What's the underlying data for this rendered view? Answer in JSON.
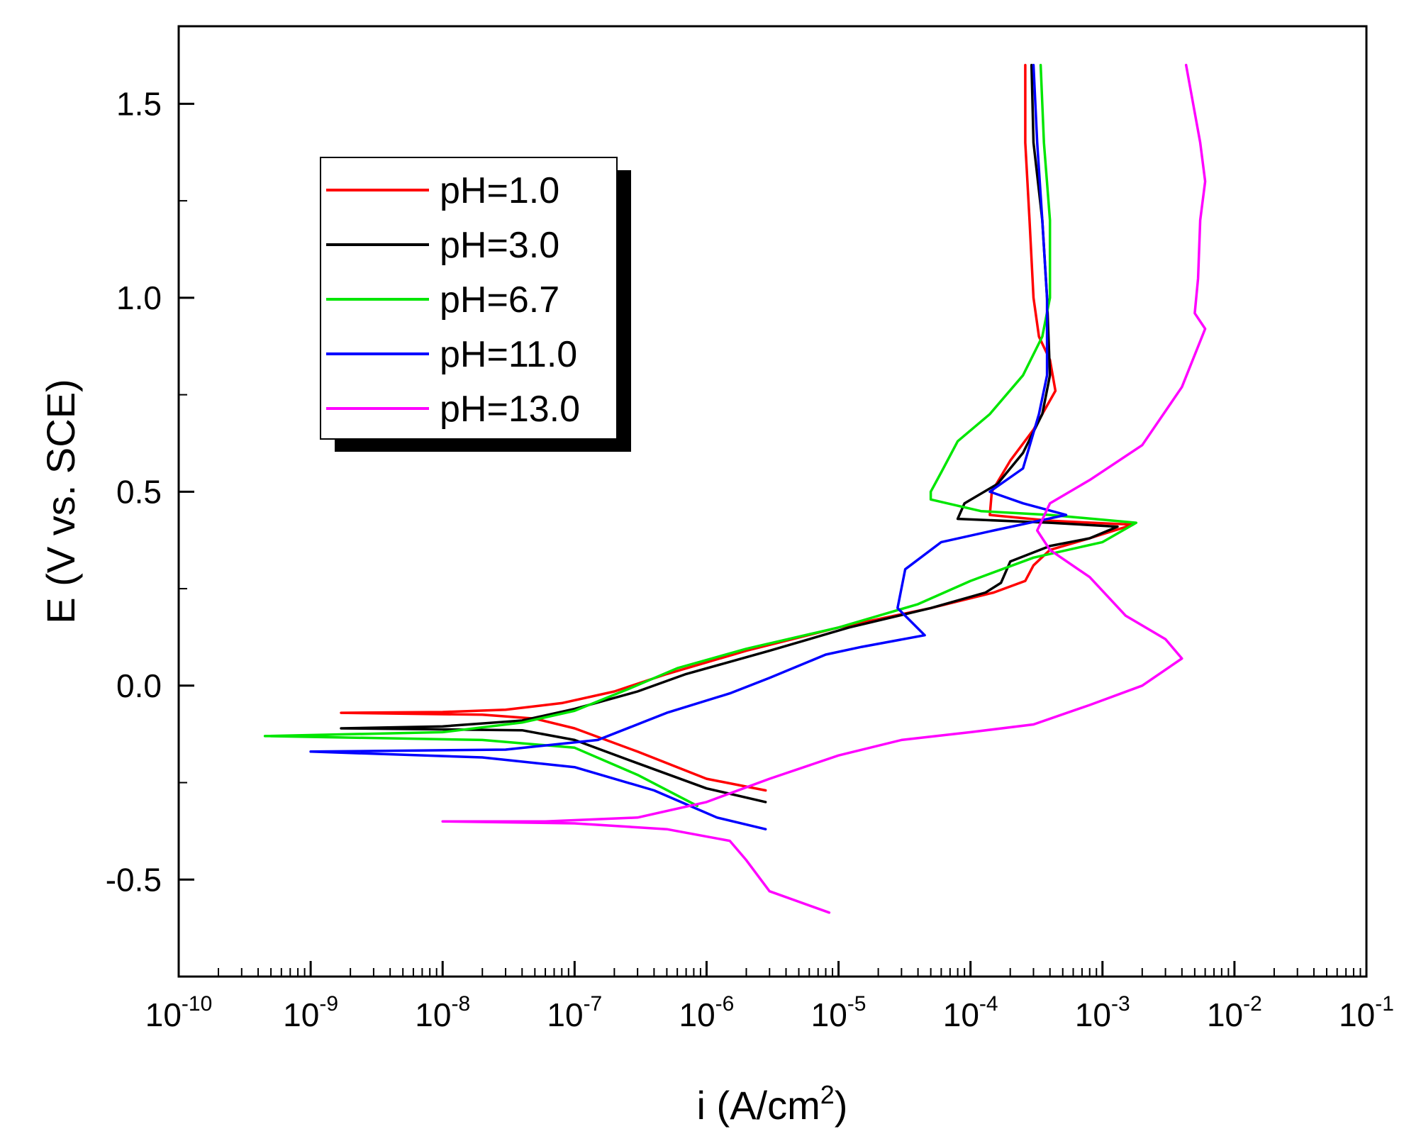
{
  "chart_data": {
    "type": "line",
    "title": "",
    "xlabel": {
      "base": "i (A/cm",
      "sup": "2",
      "tail": ")"
    },
    "ylabel": "E (V vs. SCE)",
    "xscale": "log",
    "xlim": [
      1e-10,
      0.1
    ],
    "ylim": [
      -0.75,
      1.7
    ],
    "grid": false,
    "legend_position": "top-left",
    "x_ticks": [
      {
        "value": 1e-10,
        "base": "10",
        "exp": "-10"
      },
      {
        "value": 1e-09,
        "base": "10",
        "exp": "-9"
      },
      {
        "value": 1e-08,
        "base": "10",
        "exp": "-8"
      },
      {
        "value": 1e-07,
        "base": "10",
        "exp": "-7"
      },
      {
        "value": 1e-06,
        "base": "10",
        "exp": "-6"
      },
      {
        "value": 1e-05,
        "base": "10",
        "exp": "-5"
      },
      {
        "value": 0.0001,
        "base": "10",
        "exp": "-4"
      },
      {
        "value": 0.001,
        "base": "10",
        "exp": "-3"
      },
      {
        "value": 0.01,
        "base": "10",
        "exp": "-2"
      },
      {
        "value": 0.1,
        "base": "10",
        "exp": "-1"
      }
    ],
    "y_ticks": [
      {
        "value": -0.5,
        "label": "-0.5"
      },
      {
        "value": 0.0,
        "label": "0.0"
      },
      {
        "value": 0.5,
        "label": "0.5"
      },
      {
        "value": 1.0,
        "label": "1.0"
      },
      {
        "value": 1.5,
        "label": "1.5"
      }
    ],
    "series": [
      {
        "name": "pH=1.0",
        "color": "#ff0000",
        "points": [
          [
            2.8e-06,
            -0.27
          ],
          [
            1e-06,
            -0.24
          ],
          [
            3e-07,
            -0.17
          ],
          [
            1e-07,
            -0.11
          ],
          [
            5e-08,
            -0.085
          ],
          [
            2e-08,
            -0.075
          ],
          [
            1.7e-09,
            -0.07
          ],
          [
            1e-08,
            -0.068
          ],
          [
            3e-08,
            -0.062
          ],
          [
            8e-08,
            -0.045
          ],
          [
            2e-07,
            -0.015
          ],
          [
            5e-07,
            0.03
          ],
          [
            2e-06,
            0.09
          ],
          [
            1e-05,
            0.15
          ],
          [
            5e-05,
            0.2
          ],
          [
            0.00015,
            0.24
          ],
          [
            0.00026,
            0.27
          ],
          [
            0.0003,
            0.31
          ],
          [
            0.0004,
            0.35
          ],
          [
            0.0008,
            0.38
          ],
          [
            0.0017,
            0.415
          ],
          [
            0.0004,
            0.425
          ],
          [
            0.00014,
            0.44
          ],
          [
            0.000145,
            0.5
          ],
          [
            0.0002,
            0.58
          ],
          [
            0.0003,
            0.66
          ],
          [
            0.00044,
            0.76
          ],
          [
            0.0004,
            0.84
          ],
          [
            0.00033,
            0.9
          ],
          [
            0.0003,
            1.0
          ],
          [
            0.00028,
            1.2
          ],
          [
            0.00026,
            1.4
          ],
          [
            0.00026,
            1.6
          ]
        ]
      },
      {
        "name": "pH=3.0",
        "color": "#000000",
        "points": [
          [
            2.8e-06,
            -0.3
          ],
          [
            1e-06,
            -0.265
          ],
          [
            3e-07,
            -0.2
          ],
          [
            1e-07,
            -0.14
          ],
          [
            4e-08,
            -0.115
          ],
          [
            1.7e-09,
            -0.11
          ],
          [
            1e-08,
            -0.105
          ],
          [
            4e-08,
            -0.09
          ],
          [
            1e-07,
            -0.06
          ],
          [
            3e-07,
            -0.015
          ],
          [
            7e-07,
            0.03
          ],
          [
            3e-06,
            0.09
          ],
          [
            1.2e-05,
            0.15
          ],
          [
            5e-05,
            0.2
          ],
          [
            0.00013,
            0.24
          ],
          [
            0.00017,
            0.265
          ],
          [
            0.0002,
            0.32
          ],
          [
            0.0004,
            0.36
          ],
          [
            0.0008,
            0.38
          ],
          [
            0.0013,
            0.41
          ],
          [
            0.0004,
            0.42
          ],
          [
            8e-05,
            0.43
          ],
          [
            9e-05,
            0.47
          ],
          [
            0.00016,
            0.52
          ],
          [
            0.00025,
            0.6
          ],
          [
            0.00035,
            0.7
          ],
          [
            0.0004,
            0.8
          ],
          [
            0.00038,
            1.0
          ],
          [
            0.00035,
            1.2
          ],
          [
            0.0003,
            1.4
          ],
          [
            0.00029,
            1.6
          ]
        ]
      },
      {
        "name": "pH=6.7",
        "color": "#00e600",
        "points": [
          [
            8.5e-07,
            -0.31
          ],
          [
            3e-07,
            -0.23
          ],
          [
            1e-07,
            -0.16
          ],
          [
            2e-08,
            -0.14
          ],
          [
            4.5e-10,
            -0.13
          ],
          [
            1e-08,
            -0.12
          ],
          [
            4e-08,
            -0.095
          ],
          [
            1e-07,
            -0.065
          ],
          [
            2.5e-07,
            -0.01
          ],
          [
            6e-07,
            0.045
          ],
          [
            2e-06,
            0.095
          ],
          [
            1e-05,
            0.15
          ],
          [
            4e-05,
            0.21
          ],
          [
            0.0001,
            0.27
          ],
          [
            0.0003,
            0.33
          ],
          [
            0.001,
            0.37
          ],
          [
            0.0018,
            0.42
          ],
          [
            0.0004,
            0.44
          ],
          [
            0.00012,
            0.45
          ],
          [
            5e-05,
            0.48
          ],
          [
            5e-05,
            0.5
          ],
          [
            6e-05,
            0.55
          ],
          [
            8e-05,
            0.63
          ],
          [
            0.00014,
            0.7
          ],
          [
            0.00025,
            0.8
          ],
          [
            0.00035,
            0.9
          ],
          [
            0.0004,
            1.0
          ],
          [
            0.0004,
            1.2
          ],
          [
            0.00036,
            1.4
          ],
          [
            0.00034,
            1.6
          ]
        ]
      },
      {
        "name": "pH=11.0",
        "color": "#0000ff",
        "points": [
          [
            2.8e-06,
            -0.37
          ],
          [
            1.2e-06,
            -0.34
          ],
          [
            4e-07,
            -0.27
          ],
          [
            1e-07,
            -0.21
          ],
          [
            2e-08,
            -0.185
          ],
          [
            1e-09,
            -0.17
          ],
          [
            3e-08,
            -0.165
          ],
          [
            1.5e-07,
            -0.14
          ],
          [
            5e-07,
            -0.07
          ],
          [
            1.5e-06,
            -0.02
          ],
          [
            3e-06,
            0.02
          ],
          [
            8e-06,
            0.08
          ],
          [
            1.5e-05,
            0.1
          ],
          [
            4.5e-05,
            0.13
          ],
          [
            2.8e-05,
            0.2
          ],
          [
            3.2e-05,
            0.3
          ],
          [
            6e-05,
            0.37
          ],
          [
            0.00015,
            0.4
          ],
          [
            0.00053,
            0.44
          ],
          [
            0.00025,
            0.47
          ],
          [
            0.00014,
            0.5
          ],
          [
            0.00025,
            0.56
          ],
          [
            0.00033,
            0.7
          ],
          [
            0.00038,
            0.8
          ],
          [
            0.00038,
            1.0
          ],
          [
            0.00035,
            1.2
          ],
          [
            0.00032,
            1.4
          ],
          [
            0.0003,
            1.6
          ]
        ]
      },
      {
        "name": "pH=13.0",
        "color": "#ff00ff",
        "points": [
          [
            8.5e-06,
            -0.585
          ],
          [
            3e-06,
            -0.53
          ],
          [
            2e-06,
            -0.45
          ],
          [
            1.5e-06,
            -0.4
          ],
          [
            5e-07,
            -0.37
          ],
          [
            1e-07,
            -0.355
          ],
          [
            1e-08,
            -0.35
          ],
          [
            6e-08,
            -0.35
          ],
          [
            3e-07,
            -0.34
          ],
          [
            1e-06,
            -0.3
          ],
          [
            3e-06,
            -0.24
          ],
          [
            1e-05,
            -0.18
          ],
          [
            3e-05,
            -0.14
          ],
          [
            0.0001,
            -0.12
          ],
          [
            0.0003,
            -0.1
          ],
          [
            0.0008,
            -0.05
          ],
          [
            0.002,
            0.0
          ],
          [
            0.004,
            0.07
          ],
          [
            0.003,
            0.12
          ],
          [
            0.0015,
            0.18
          ],
          [
            0.0008,
            0.28
          ],
          [
            0.0004,
            0.35
          ],
          [
            0.00032,
            0.4
          ],
          [
            0.0004,
            0.47
          ],
          [
            0.0008,
            0.53
          ],
          [
            0.002,
            0.62
          ],
          [
            0.004,
            0.77
          ],
          [
            0.006,
            0.92
          ],
          [
            0.005,
            0.96
          ],
          [
            0.0053,
            1.05
          ],
          [
            0.0055,
            1.2
          ],
          [
            0.006,
            1.3
          ],
          [
            0.0055,
            1.4
          ],
          [
            0.0043,
            1.6
          ]
        ]
      }
    ]
  }
}
